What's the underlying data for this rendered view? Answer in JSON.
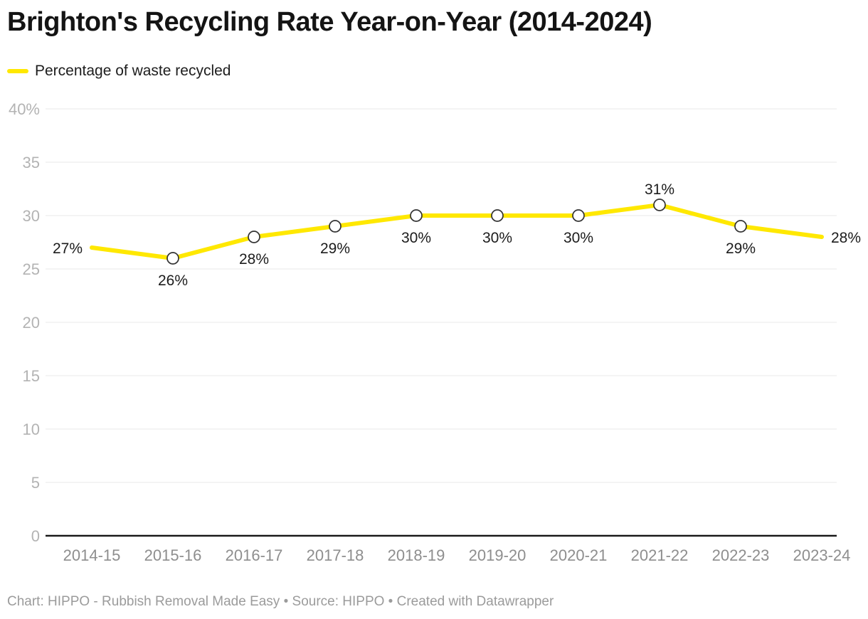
{
  "header": {
    "title": "Brighton's Recycling Rate Year-on-Year (2014-2024)"
  },
  "legend": {
    "label": "Percentage of waste recycled"
  },
  "footer": {
    "text": "Chart: HIPPO - Rubbish Removal Made Easy • Source: HIPPO • Created with Datawrapper"
  },
  "colors": {
    "line": "#ffe800",
    "marker_fill": "#ffffff",
    "marker_stroke": "#333333",
    "grid": "#e8e8e8",
    "axis_baseline": "#1a1a1a",
    "ytick_text": "#b3b3b3",
    "xtick_text": "#8e8e8e",
    "data_label_text": "#1c1c1c",
    "title_text": "#141414",
    "footer_text": "#9b9b9b"
  },
  "chart_data": {
    "type": "line",
    "title": "Brighton's Recycling Rate Year-on-Year (2014-2024)",
    "categories": [
      "2014-15",
      "2015-16",
      "2016-17",
      "2017-18",
      "2018-19",
      "2019-20",
      "2020-21",
      "2021-22",
      "2022-23",
      "2023-24"
    ],
    "series": [
      {
        "name": "Percentage of waste recycled",
        "values": [
          27,
          26,
          28,
          29,
          30,
          30,
          30,
          31,
          29,
          28
        ]
      }
    ],
    "data_labels": [
      "27%",
      "26%",
      "28%",
      "29%",
      "30%",
      "30%",
      "30%",
      "31%",
      "29%",
      "28%"
    ],
    "data_label_positions": [
      "left",
      "below",
      "below",
      "below",
      "below",
      "below",
      "below",
      "above",
      "below",
      "right"
    ],
    "xlabel": "",
    "ylabel": "",
    "ylim": [
      0,
      40
    ],
    "yticks": [
      0,
      5,
      10,
      15,
      20,
      25,
      30,
      35,
      40
    ],
    "ytick_labels": [
      "0",
      "5",
      "10",
      "15",
      "20",
      "25",
      "30",
      "35",
      "40%"
    ],
    "grid": true,
    "legend_position": "top-left",
    "marker": "open-circle",
    "markers_on_endpoints": false
  }
}
